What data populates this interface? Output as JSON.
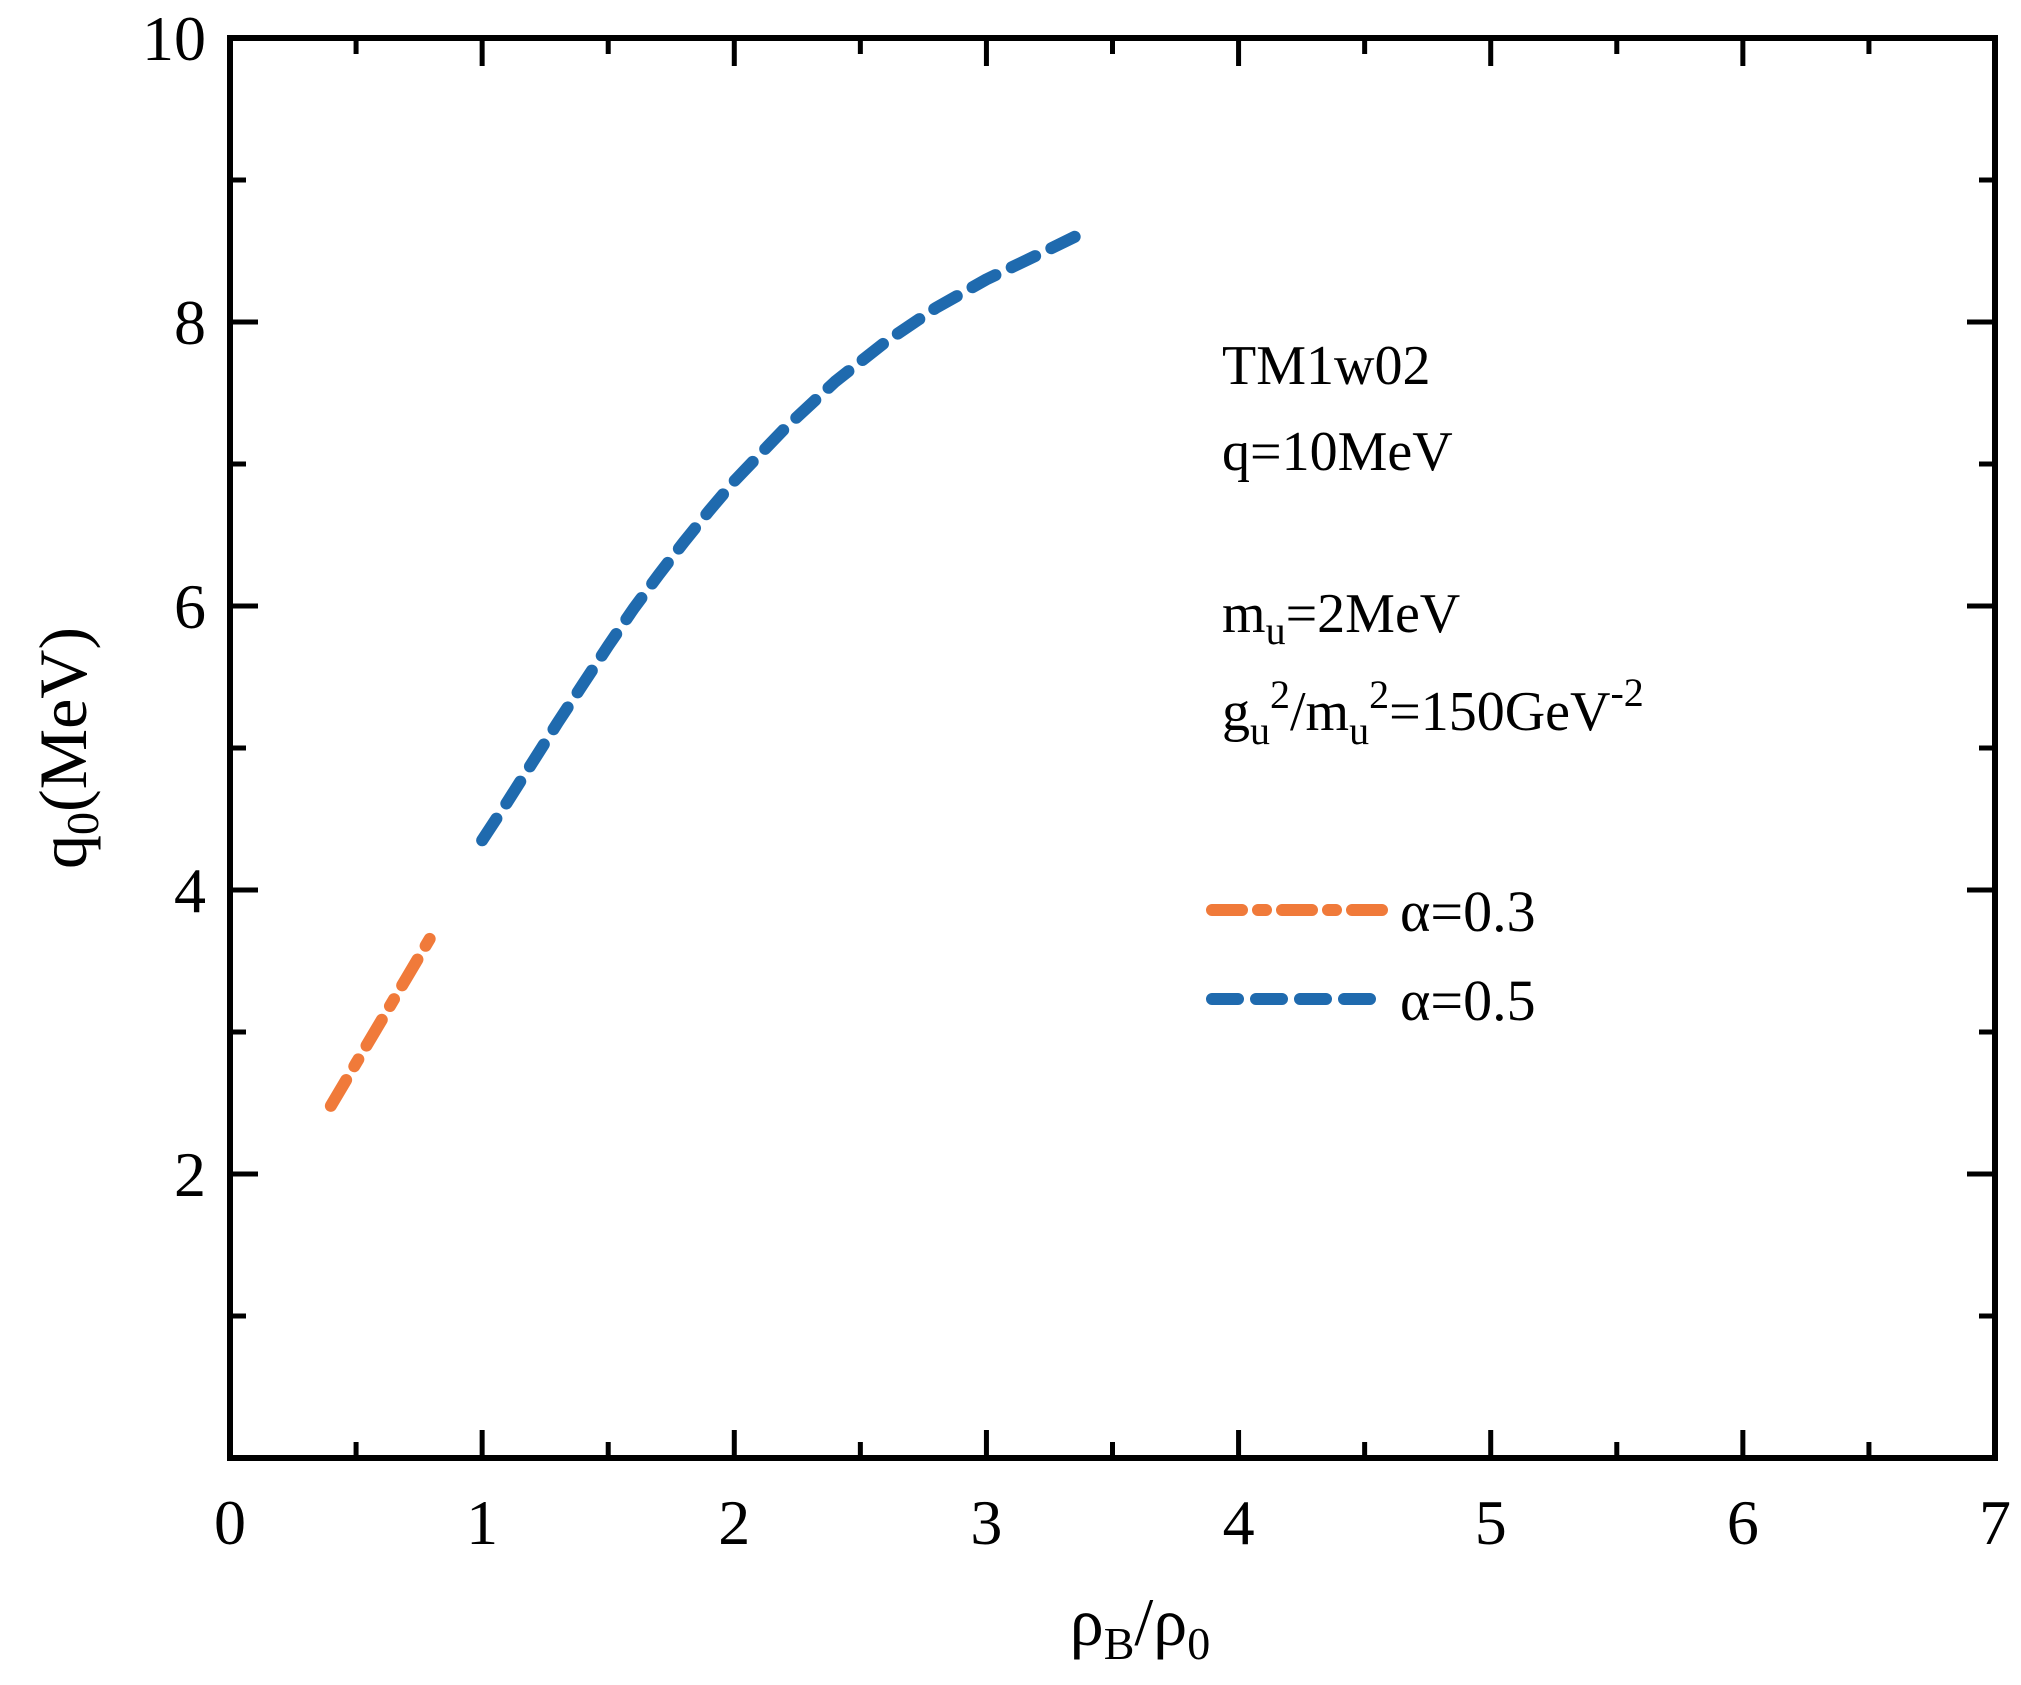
{
  "chart_data": {
    "type": "line",
    "xlabel": {
      "main": "ρ",
      "sub1": "B",
      "mid": "/ρ",
      "sub2": "0"
    },
    "ylabel": {
      "main": "q",
      "sub": "0",
      "rest": "(MeV)"
    },
    "xlim": [
      0,
      7
    ],
    "ylim": [
      0,
      10
    ],
    "xticks": [
      0,
      1,
      2,
      3,
      4,
      5,
      6,
      7
    ],
    "xtick_labels": [
      "0",
      "1",
      "2",
      "3",
      "4",
      "5",
      "6",
      "7"
    ],
    "yticks": [
      2,
      4,
      6,
      8,
      10
    ],
    "ytick_labels": [
      "2",
      "4",
      "6",
      "8",
      "10"
    ],
    "x_minor_step": 0.5,
    "y_minor_step": 1,
    "grid": false,
    "legend_placement": "right-center",
    "annotations": {
      "model": "TM1w02",
      "q_value": "q=10MeV",
      "mu": {
        "a": "m",
        "a_sub": "u",
        "b": "=2MeV"
      },
      "coupling": {
        "a": "g",
        "a_sub": "u",
        "a_sup": "2",
        "b": "/m",
        "b_sub": "u",
        "b_sup": "2",
        "c": "=150GeV",
        "c_sup": "-2"
      }
    },
    "series": [
      {
        "name": "α=0.3",
        "color": "#f07a3a",
        "style": "dash-dot",
        "x": [
          0.4,
          0.5,
          0.6,
          0.7,
          0.8
        ],
        "y": [
          2.48,
          2.78,
          3.08,
          3.38,
          3.68
        ]
      },
      {
        "name": "α=0.5",
        "color": "#1f6aae",
        "style": "dashed",
        "x": [
          1.0,
          1.1,
          1.2,
          1.3,
          1.4,
          1.5,
          1.6,
          1.7,
          1.8,
          1.9,
          2.0,
          2.2,
          2.4,
          2.6,
          2.8,
          3.0,
          3.2,
          3.35
        ],
        "y": [
          4.35,
          4.62,
          4.9,
          5.18,
          5.45,
          5.72,
          5.98,
          6.22,
          6.45,
          6.67,
          6.88,
          7.25,
          7.58,
          7.86,
          8.1,
          8.3,
          8.47,
          8.6
        ]
      }
    ]
  }
}
